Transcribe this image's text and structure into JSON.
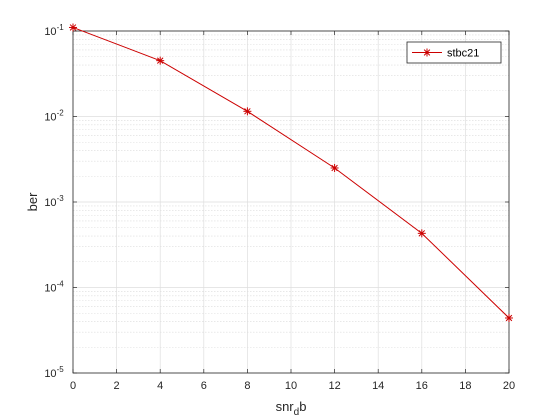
{
  "chart_data": {
    "type": "line",
    "title": "",
    "xlabel": {
      "main": "snr",
      "subscript": "d",
      "tail": "b"
    },
    "ylabel": "ber",
    "xlim": [
      0,
      20
    ],
    "ylim": [
      1e-05,
      0.1
    ],
    "yscale": "log",
    "grid": true,
    "minor_grid": true,
    "legend_position": "top-right",
    "x_ticks": [
      "0",
      "2",
      "4",
      "6",
      "8",
      "10",
      "12",
      "14",
      "16",
      "18",
      "20"
    ],
    "y_ticks": [
      {
        "base": "10",
        "exp": "-5"
      },
      {
        "base": "10",
        "exp": "-4"
      },
      {
        "base": "10",
        "exp": "-3"
      },
      {
        "base": "10",
        "exp": "-2"
      },
      {
        "base": "10",
        "exp": "-1"
      }
    ],
    "series": [
      {
        "name": "stbc21",
        "color": "#cc0000",
        "marker": "asterisk",
        "x": [
          0,
          4,
          8,
          12,
          16,
          20
        ],
        "y": [
          0.11,
          0.045,
          0.0115,
          0.0025,
          0.00043,
          4.4e-05
        ]
      }
    ]
  }
}
